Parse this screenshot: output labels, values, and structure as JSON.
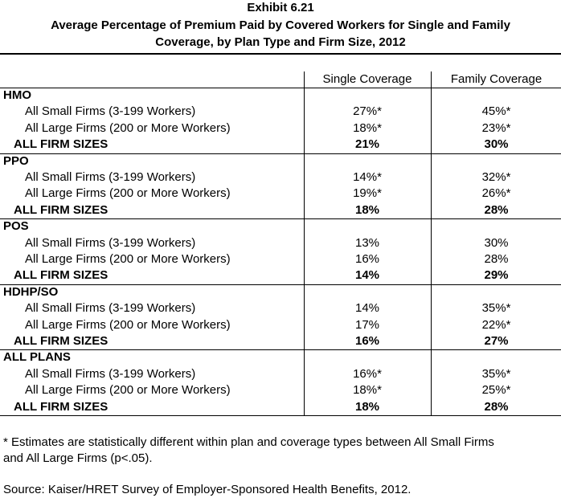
{
  "exhibit_label": "Exhibit 6.21",
  "title_line1": "Average Percentage of Premium Paid by Covered Workers for Single and Family",
  "title_line2": "Coverage, by Plan Type and Firm Size, 2012",
  "columns": [
    "Single Coverage",
    "Family Coverage"
  ],
  "groups": [
    {
      "name": "HMO",
      "rows": [
        {
          "label": "All Small Firms (3-199 Workers)",
          "single": "27%*",
          "family": "45%*"
        },
        {
          "label": "All Large Firms (200 or More Workers)",
          "single": "18%*",
          "family": "23%*"
        }
      ],
      "total": {
        "label": "ALL FIRM SIZES",
        "single": "21%",
        "family": "30%"
      }
    },
    {
      "name": "PPO",
      "rows": [
        {
          "label": "All Small Firms (3-199 Workers)",
          "single": "14%*",
          "family": "32%*"
        },
        {
          "label": "All Large Firms (200 or More Workers)",
          "single": "19%*",
          "family": "26%*"
        }
      ],
      "total": {
        "label": "ALL FIRM SIZES",
        "single": "18%",
        "family": "28%"
      }
    },
    {
      "name": "POS",
      "rows": [
        {
          "label": "All Small Firms (3-199 Workers)",
          "single": "13%",
          "family": "30%"
        },
        {
          "label": "All Large Firms (200 or More Workers)",
          "single": "16%",
          "family": "28%"
        }
      ],
      "total": {
        "label": "ALL FIRM SIZES",
        "single": "14%",
        "family": "29%"
      }
    },
    {
      "name": "HDHP/SO",
      "rows": [
        {
          "label": "All Small Firms (3-199 Workers)",
          "single": "14%",
          "family": "35%*"
        },
        {
          "label": "All Large Firms (200 or More Workers)",
          "single": "17%",
          "family": "22%*"
        }
      ],
      "total": {
        "label": "ALL FIRM SIZES",
        "single": "16%",
        "family": "27%"
      }
    },
    {
      "name": "ALL PLANS",
      "rows": [
        {
          "label": "All Small Firms (3-199 Workers)",
          "single": "16%*",
          "family": "35%*"
        },
        {
          "label": "All Large Firms (200 or More Workers)",
          "single": "18%*",
          "family": "25%*"
        }
      ],
      "total": {
        "label": "ALL FIRM SIZES",
        "single": "18%",
        "family": "28%"
      }
    }
  ],
  "footnote_line1": "* Estimates are statistically different within plan and coverage types between All Small Firms",
  "footnote_line2": "and All Large Firms (p<.05).",
  "source": "Source: Kaiser/HRET Survey of Employer-Sponsored Health Benefits, 2012."
}
